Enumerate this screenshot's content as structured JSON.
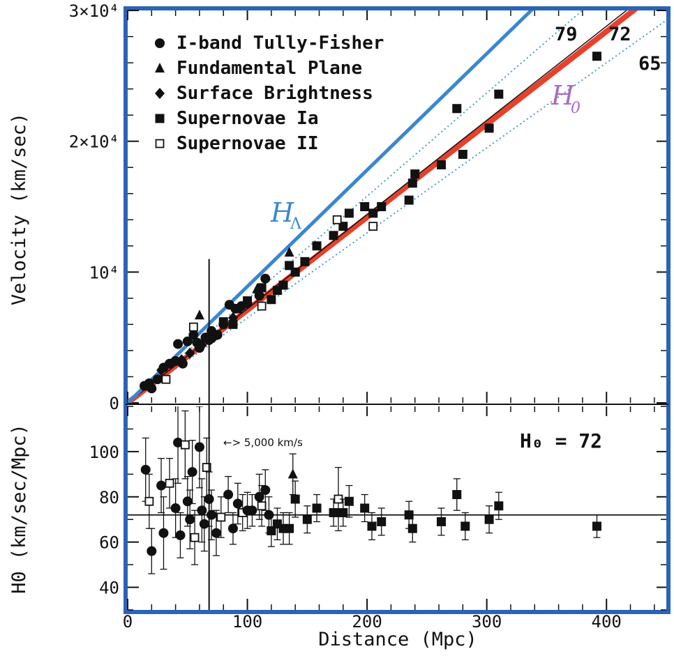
{
  "chart_data": [
    {
      "type": "scatter",
      "xlabel": "Distance (Mpc)",
      "ylabel": "Velocity (km/sec)",
      "xlim": [
        0,
        450
      ],
      "ylim": [
        0,
        30000
      ],
      "x_ticks": [
        0,
        100,
        200,
        300,
        400
      ],
      "x_tick_labels": [
        "0",
        "100",
        "200",
        "300",
        "400"
      ],
      "y_ticks": [
        0,
        10000,
        20000,
        30000
      ],
      "y_tick_labels": [
        "0",
        "10⁴",
        "2×10⁴",
        "3×10⁴"
      ],
      "legend_position": "top-left",
      "legend": [
        {
          "name": "I-band Tully-Fisher",
          "marker": "circle"
        },
        {
          "name": "Fundamental Plane",
          "marker": "triangle"
        },
        {
          "name": "Surface Brightness",
          "marker": "diamond"
        },
        {
          "name": "Supernovae Ia",
          "marker": "square-filled"
        },
        {
          "name": "Supernovae II",
          "marker": "square-open"
        }
      ],
      "lines": [
        {
          "label": "79",
          "slope_kms_per_mpc": 79,
          "style": "dotted",
          "color": "#4a9cc0"
        },
        {
          "label": "72",
          "slope_kms_per_mpc": 72,
          "style": "solid",
          "color": "#111111"
        },
        {
          "label": "65",
          "slope_kms_per_mpc": 65,
          "style": "dotted",
          "color": "#4a9cc0"
        },
        {
          "label": "H0",
          "slope_kms_per_mpc": 71,
          "style": "thick",
          "color": "#e8402a"
        },
        {
          "label": "HΛ",
          "slope_kms_per_mpc": 89,
          "style": "thick",
          "color": "#3a86d0"
        }
      ],
      "annotations": {
        "h_lambda": "H",
        "h_lambda_sub": "Λ",
        "h0": "H",
        "h0_sub": "0"
      },
      "series": [
        {
          "name": "I-band Tully-Fisher",
          "points": [
            [
              14,
              1300
            ],
            [
              18,
              1500
            ],
            [
              20,
              1100
            ],
            [
              25,
              1800
            ],
            [
              30,
              2700
            ],
            [
              35,
              3000
            ],
            [
              40,
              3200
            ],
            [
              42,
              4500
            ],
            [
              46,
              3000
            ],
            [
              50,
              4700
            ],
            [
              55,
              5200
            ],
            [
              58,
              4600
            ],
            [
              60,
              4200
            ],
            [
              65,
              5000
            ],
            [
              68,
              4800
            ],
            [
              70,
              5500
            ],
            [
              75,
              5200
            ],
            [
              80,
              6000
            ],
            [
              85,
              7500
            ],
            [
              90,
              7200
            ],
            [
              95,
              7400
            ],
            [
              100,
              7600
            ],
            [
              110,
              8200
            ],
            [
              115,
              9500
            ]
          ]
        },
        {
          "name": "Fundamental Plane",
          "points": [
            [
              60,
              6700
            ],
            [
              108,
              8700
            ],
            [
              135,
              11500
            ]
          ]
        },
        {
          "name": "Surface Brightness",
          "points": [
            [
              28,
              2500
            ],
            [
              45,
              3300
            ],
            [
              52,
              3800
            ],
            [
              62,
              4400
            ],
            [
              72,
              5000
            ],
            [
              88,
              6500
            ]
          ]
        },
        {
          "name": "Supernovae Ia",
          "points": [
            [
              80,
              6200
            ],
            [
              88,
              6000
            ],
            [
              92,
              7200
            ],
            [
              100,
              7800
            ],
            [
              112,
              8800
            ],
            [
              120,
              7900
            ],
            [
              125,
              8600
            ],
            [
              130,
              9000
            ],
            [
              135,
              10500
            ],
            [
              140,
              10000
            ],
            [
              148,
              10800
            ],
            [
              158,
              12000
            ],
            [
              172,
              12800
            ],
            [
              180,
              13500
            ],
            [
              185,
              14500
            ],
            [
              198,
              15000
            ],
            [
              205,
              14500
            ],
            [
              212,
              15000
            ],
            [
              235,
              15500
            ],
            [
              238,
              16800
            ],
            [
              240,
              17500
            ],
            [
              262,
              18200
            ],
            [
              275,
              22500
            ],
            [
              280,
              19000
            ],
            [
              302,
              21000
            ],
            [
              310,
              23600
            ],
            [
              392,
              26500
            ]
          ]
        },
        {
          "name": "Supernovae II",
          "points": [
            [
              32,
              1800
            ],
            [
              55,
              5800
            ],
            [
              112,
              7400
            ],
            [
              175,
              14000
            ],
            [
              205,
              13500
            ]
          ]
        }
      ]
    },
    {
      "type": "scatter",
      "xlabel": "Distance (Mpc)",
      "ylabel": "H0 (km/sec/Mpc)",
      "xlim": [
        0,
        450
      ],
      "ylim": [
        30,
        120
      ],
      "y_ticks": [
        40,
        60,
        80,
        100
      ],
      "y_tick_labels": [
        "40",
        "60",
        "80",
        "100"
      ],
      "reference_line": 72,
      "note": "H₀ = 72",
      "velocity_note": "> 5,000 km/s",
      "series": [
        {
          "name": "H0 estimates",
          "points": [
            [
              15,
              92,
              14
            ],
            [
              18,
              78,
              12
            ],
            [
              20,
              56,
              10
            ],
            [
              28,
              85,
              12
            ],
            [
              30,
              64,
              16
            ],
            [
              35,
              86,
              11
            ],
            [
              40,
              75,
              13
            ],
            [
              42,
              104,
              18
            ],
            [
              44,
              63,
              10
            ],
            [
              48,
              103,
              15
            ],
            [
              50,
              78,
              11
            ],
            [
              52,
              70,
              13
            ],
            [
              54,
              91,
              14
            ],
            [
              56,
              62,
              12
            ],
            [
              60,
              102,
              18
            ],
            [
              62,
              74,
              14
            ],
            [
              64,
              68,
              12
            ],
            [
              66,
              93,
              13
            ],
            [
              68,
              79,
              12
            ],
            [
              70,
              72,
              11
            ],
            [
              74,
              64,
              10
            ],
            [
              78,
              71,
              9
            ],
            [
              84,
              81,
              8
            ],
            [
              88,
              66,
              7
            ],
            [
              92,
              77,
              9
            ],
            [
              96,
              73,
              8
            ],
            [
              100,
              74,
              8
            ],
            [
              104,
              74,
              7
            ],
            [
              110,
              80,
              10
            ],
            [
              112,
              76,
              9
            ],
            [
              115,
              83,
              9
            ],
            [
              118,
              72,
              8
            ],
            [
              120,
              65,
              7
            ],
            [
              125,
              68,
              7
            ],
            [
              130,
              66,
              7
            ],
            [
              135,
              66,
              7
            ],
            [
              138,
              90,
              9
            ],
            [
              140,
              79,
              8
            ],
            [
              150,
              70,
              6
            ],
            [
              158,
              75,
              6
            ],
            [
              172,
              73,
              6
            ],
            [
              176,
              79,
              14
            ],
            [
              180,
              73,
              6
            ],
            [
              185,
              78,
              7
            ],
            [
              198,
              75,
              6
            ],
            [
              204,
              67,
              6
            ],
            [
              212,
              69,
              6
            ],
            [
              235,
              72,
              6
            ],
            [
              238,
              66,
              6
            ],
            [
              262,
              69,
              6
            ],
            [
              275,
              81,
              7
            ],
            [
              282,
              67,
              6
            ],
            [
              302,
              70,
              6
            ],
            [
              310,
              76,
              6
            ],
            [
              392,
              67,
              5
            ]
          ]
        }
      ]
    }
  ]
}
